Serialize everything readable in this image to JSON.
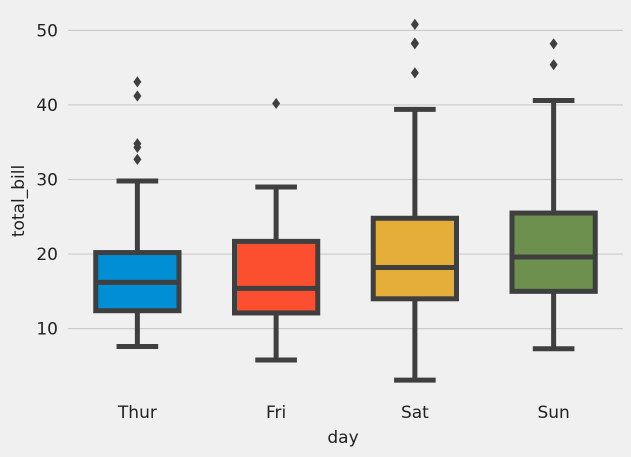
{
  "chart_data": {
    "type": "boxplot",
    "title": "",
    "xlabel": "day",
    "ylabel": "total_bill",
    "ylim": [
      1.5,
      53
    ],
    "yticks": [
      10,
      20,
      30,
      40,
      50
    ],
    "grid": "horizontal",
    "categories": [
      "Thur",
      "Fri",
      "Sat",
      "Sun"
    ],
    "boxes": [
      {
        "category": "Thur",
        "color": "#008fd5",
        "whisker_low": 7.6,
        "q1": 12.4,
        "median": 16.2,
        "q3": 20.2,
        "whisker_high": 29.8,
        "outliers": [
          32.7,
          34.3,
          34.8,
          41.2,
          43.1
        ]
      },
      {
        "category": "Fri",
        "color": "#fc4f30",
        "whisker_low": 5.8,
        "q1": 12.1,
        "median": 15.4,
        "q3": 21.7,
        "whisker_high": 29.0,
        "outliers": [
          40.2
        ]
      },
      {
        "category": "Sat",
        "color": "#e5ae38",
        "whisker_low": 3.1,
        "q1": 14.0,
        "median": 18.2,
        "q3": 24.8,
        "whisker_high": 39.4,
        "outliers": [
          44.3,
          48.2,
          48.3,
          50.8
        ]
      },
      {
        "category": "Sun",
        "color": "#6d904f",
        "whisker_low": 7.3,
        "q1": 15.0,
        "median": 19.6,
        "q3": 25.5,
        "whisker_high": 40.6,
        "outliers": [
          45.4,
          48.2
        ]
      }
    ]
  }
}
